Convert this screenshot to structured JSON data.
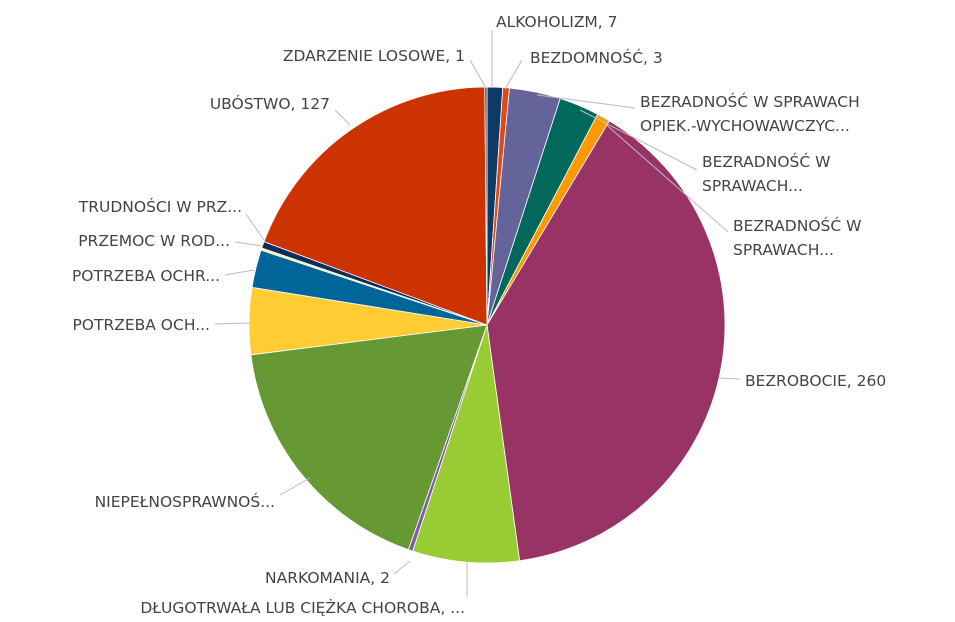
{
  "chart_data": {
    "type": "pie",
    "categories": [
      "ALKOHOLIZM, 7",
      "BEZDOMNOŚĆ, 3",
      "BEZRADNOŚĆ W SPRAWACH\nOPIEK.-WYCHOWAWCZYC...",
      "BEZRADNOŚĆ W\nSPRAWACH...",
      "BEZRADNOŚĆ W\nSPRAWACH...",
      "BEZROBOCIE, 260",
      "DŁUGOTRWAŁA LUB CIĘŻKA CHOROBA, ...",
      "NARKOMANIA, 2",
      "NIEPEŁNOSPRAWNOŚ...",
      "POTRZEBA OCH...",
      "POTRZEBA OCHR...",
      "PRZEMOC W ROD...",
      "TRUDNOŚCI W PRZ...",
      "UBÓSTWO, 127",
      "ZDARZENIE LOSOWE, 1"
    ],
    "values": [
      7,
      3,
      23,
      18,
      6,
      260,
      48,
      2,
      117,
      30,
      17,
      1,
      3,
      127,
      1
    ],
    "colors": [
      "#0d3b66",
      "#e04a1a",
      "#64649a",
      "#00695c",
      "#ff9900",
      "#993366",
      "#99cc33",
      "#7c5ca8",
      "#669933",
      "#ffcc33",
      "#006699",
      "#ffee88",
      "#0b2d5c",
      "#cc3300",
      "#3b4a6b"
    ]
  }
}
